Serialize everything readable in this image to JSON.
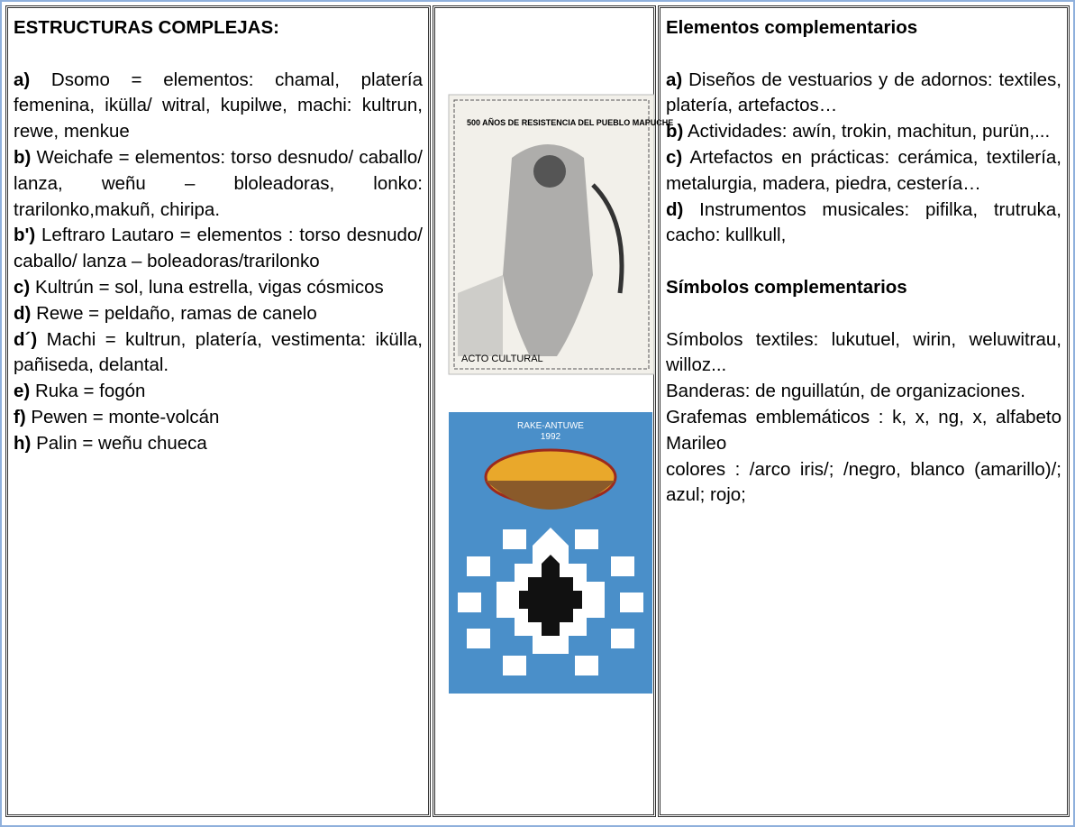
{
  "left": {
    "heading": "ESTRUCTURAS COMPLEJAS:",
    "items": [
      {
        "label": "a)",
        "text": "Dsomo = elementos: chamal, platería femenina, ikülla/ witral, kupilwe, machi: kultrun, rewe, menkue"
      },
      {
        "label": "b)",
        "text": "Weichafe = elementos: torso desnudo/ caballo/ lanza, weñu – bloleadoras, lonko: trarilonko,makuñ, chiripa."
      },
      {
        "label": "b')",
        "text": "Leftraro Lautaro = elementos : torso desnudo/ caballo/ lanza – boleadoras/trarilonko"
      },
      {
        "label": "c)",
        "text": "Kultrún = sol, luna estrella, vigas cósmicos"
      },
      {
        "label": "d)",
        "text": "Rewe = peldaño, ramas de canelo"
      },
      {
        "label": "d´)",
        "text": "Machi = kultrun, platería, vestimenta: ikülla, pañiseda, delantal."
      },
      {
        "label": "e)",
        "text": "Ruka = fogón"
      },
      {
        "label": "f)",
        "text": "Pewen = monte-volcán"
      },
      {
        "label": "h)",
        "text": "Palin = weñu chueca"
      }
    ]
  },
  "middle": {
    "poster1": {
      "title": "500 AÑOS DE RESISTENCIA DEL PUEBLO MAPUCHE",
      "footer": "ACTO CULTURAL"
    },
    "poster2": {
      "title": "RAKE-ANTUWE",
      "year": "1992"
    }
  },
  "right": {
    "heading1": "Elementos complementarios",
    "items": [
      {
        "label": "a)",
        "text": "Diseños de vestuarios y de adornos: textiles, platería, artefactos…"
      },
      {
        "label": "b)",
        "text": "Actividades: awín, trokin, machitun, purün,..."
      },
      {
        "label": "c)",
        "text": "Artefactos en prácticas: cerámica, textilería, metalurgia, madera, piedra, cestería…"
      },
      {
        "label": "d)",
        "text": "Instrumentos musicales: pifilka, trutruka, cacho: kullkull,"
      }
    ],
    "heading2": "Símbolos complementarios",
    "lines": [
      "Símbolos textiles: lukutuel, wirin, weluwitrau, willoz...",
      "Banderas: de nguillatún, de organizaciones.",
      "Grafemas emblemáticos : k, x, ng, x, alfabeto Marileo",
      "colores : /arco iris/; /negro, blanco (amarillo)/; azul; rojo;"
    ]
  }
}
